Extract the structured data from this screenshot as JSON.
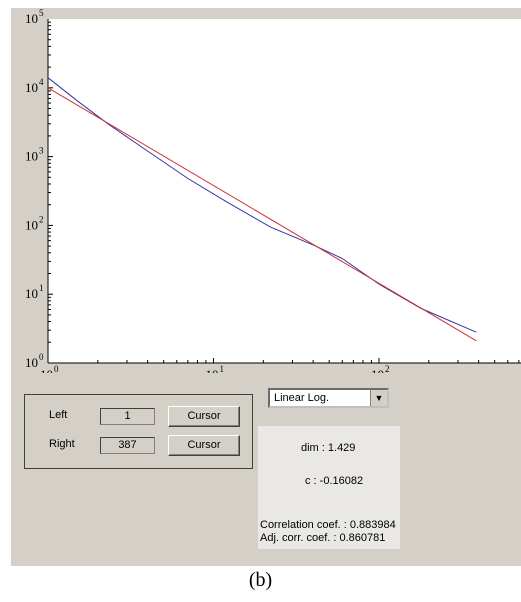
{
  "chart_data": {
    "type": "line",
    "xscale": "log",
    "yscale": "log",
    "xlim": [
      1,
      1000
    ],
    "ylim": [
      1,
      100000
    ],
    "x_ticks": [
      {
        "base": "10",
        "exp": "0"
      },
      {
        "base": "10",
        "exp": "1"
      },
      {
        "base": "10",
        "exp": "2"
      }
    ],
    "y_ticks": [
      {
        "base": "10",
        "exp": "0"
      },
      {
        "base": "10",
        "exp": "1"
      },
      {
        "base": "10",
        "exp": "2"
      },
      {
        "base": "10",
        "exp": "3"
      },
      {
        "base": "10",
        "exp": "4"
      },
      {
        "base": "10",
        "exp": "5"
      }
    ],
    "grid": false,
    "series": [
      {
        "color": "#3333aa",
        "x": [
          1,
          1.5,
          2.3,
          3.5,
          7,
          12,
          22,
          40,
          60,
          100,
          180,
          387
        ],
        "y": [
          14000,
          6500,
          3000,
          1500,
          480,
          220,
          95,
          52,
          33,
          14,
          6.2,
          2.8
        ]
      },
      {
        "color": "#cc3333",
        "x": [
          1,
          387
        ],
        "y": [
          10000,
          2.1
        ]
      }
    ]
  },
  "controls": {
    "left_label": "Left",
    "left_value": "1",
    "right_label": "Right",
    "right_value": "387",
    "cursor_label": "Cursor",
    "scale_select_value": "Linear Log."
  },
  "stats": {
    "dim": "dim : 1.429",
    "c": "c : -0.16082",
    "corr": "Correlation coef. : 0.883984",
    "adj_corr": "Adj. corr. coef. : 0.860781"
  },
  "caption": "(b)"
}
